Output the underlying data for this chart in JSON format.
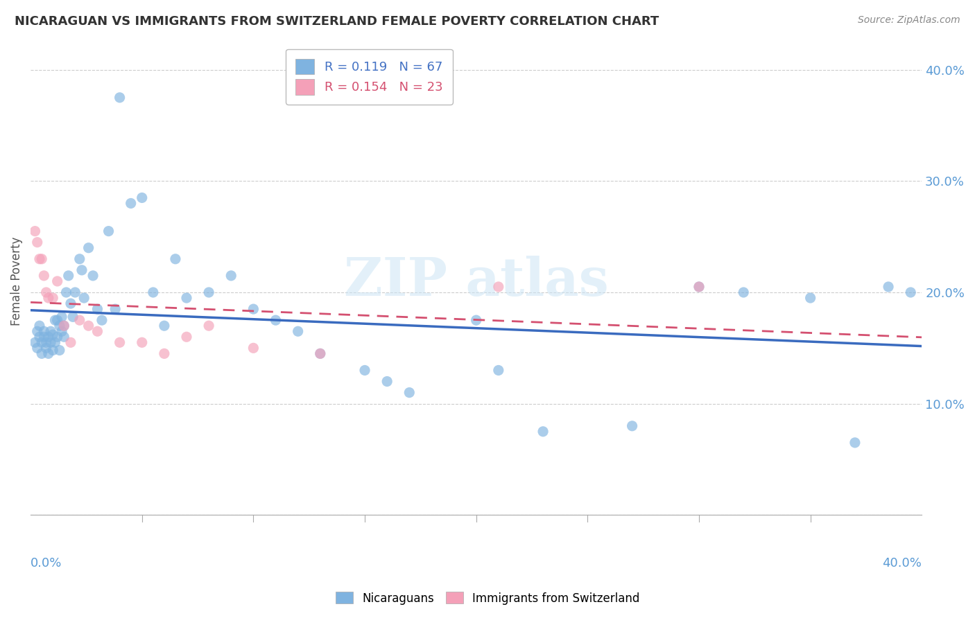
{
  "title": "NICARAGUAN VS IMMIGRANTS FROM SWITZERLAND FEMALE POVERTY CORRELATION CHART",
  "source": "Source: ZipAtlas.com",
  "ylabel": "Female Poverty",
  "y_ticks": [
    0.0,
    0.1,
    0.2,
    0.3,
    0.4
  ],
  "y_tick_labels": [
    "",
    "10.0%",
    "20.0%",
    "30.0%",
    "40.0%"
  ],
  "x_lim": [
    0.0,
    0.4
  ],
  "y_lim": [
    0.0,
    0.42
  ],
  "nicaraguan_color": "#7fb3e0",
  "swiss_color": "#f4a0b8",
  "nicaraguan_R": 0.119,
  "nicaraguan_N": 67,
  "swiss_R": 0.154,
  "swiss_N": 23,
  "nicaraguan_line_color": "#3a6bbf",
  "swiss_line_color": "#d45070",
  "background_color": "#ffffff",
  "nic_x": [
    0.002,
    0.003,
    0.003,
    0.004,
    0.004,
    0.005,
    0.005,
    0.006,
    0.006,
    0.007,
    0.007,
    0.008,
    0.008,
    0.009,
    0.009,
    0.01,
    0.01,
    0.011,
    0.011,
    0.012,
    0.012,
    0.013,
    0.013,
    0.014,
    0.014,
    0.015,
    0.015,
    0.016,
    0.017,
    0.018,
    0.019,
    0.02,
    0.022,
    0.023,
    0.024,
    0.026,
    0.028,
    0.03,
    0.032,
    0.035,
    0.038,
    0.04,
    0.045,
    0.05,
    0.055,
    0.06,
    0.065,
    0.07,
    0.08,
    0.09,
    0.1,
    0.11,
    0.12,
    0.13,
    0.15,
    0.16,
    0.17,
    0.2,
    0.21,
    0.23,
    0.27,
    0.3,
    0.32,
    0.35,
    0.37,
    0.385,
    0.395
  ],
  "nic_y": [
    0.155,
    0.165,
    0.15,
    0.16,
    0.17,
    0.145,
    0.155,
    0.16,
    0.165,
    0.15,
    0.155,
    0.145,
    0.16,
    0.155,
    0.165,
    0.148,
    0.162,
    0.175,
    0.155,
    0.175,
    0.16,
    0.17,
    0.148,
    0.165,
    0.178,
    0.16,
    0.17,
    0.2,
    0.215,
    0.19,
    0.178,
    0.2,
    0.23,
    0.22,
    0.195,
    0.24,
    0.215,
    0.185,
    0.175,
    0.255,
    0.185,
    0.375,
    0.28,
    0.285,
    0.2,
    0.17,
    0.23,
    0.195,
    0.2,
    0.215,
    0.185,
    0.175,
    0.165,
    0.145,
    0.13,
    0.12,
    0.11,
    0.175,
    0.13,
    0.075,
    0.08,
    0.205,
    0.2,
    0.195,
    0.065,
    0.205,
    0.2
  ],
  "swiss_x": [
    0.002,
    0.003,
    0.004,
    0.005,
    0.006,
    0.007,
    0.008,
    0.01,
    0.012,
    0.015,
    0.018,
    0.022,
    0.026,
    0.03,
    0.04,
    0.05,
    0.06,
    0.07,
    0.08,
    0.1,
    0.13,
    0.21,
    0.3
  ],
  "swiss_y": [
    0.255,
    0.245,
    0.23,
    0.23,
    0.215,
    0.2,
    0.195,
    0.195,
    0.21,
    0.17,
    0.155,
    0.175,
    0.17,
    0.165,
    0.155,
    0.155,
    0.145,
    0.16,
    0.17,
    0.15,
    0.145,
    0.205,
    0.205
  ]
}
